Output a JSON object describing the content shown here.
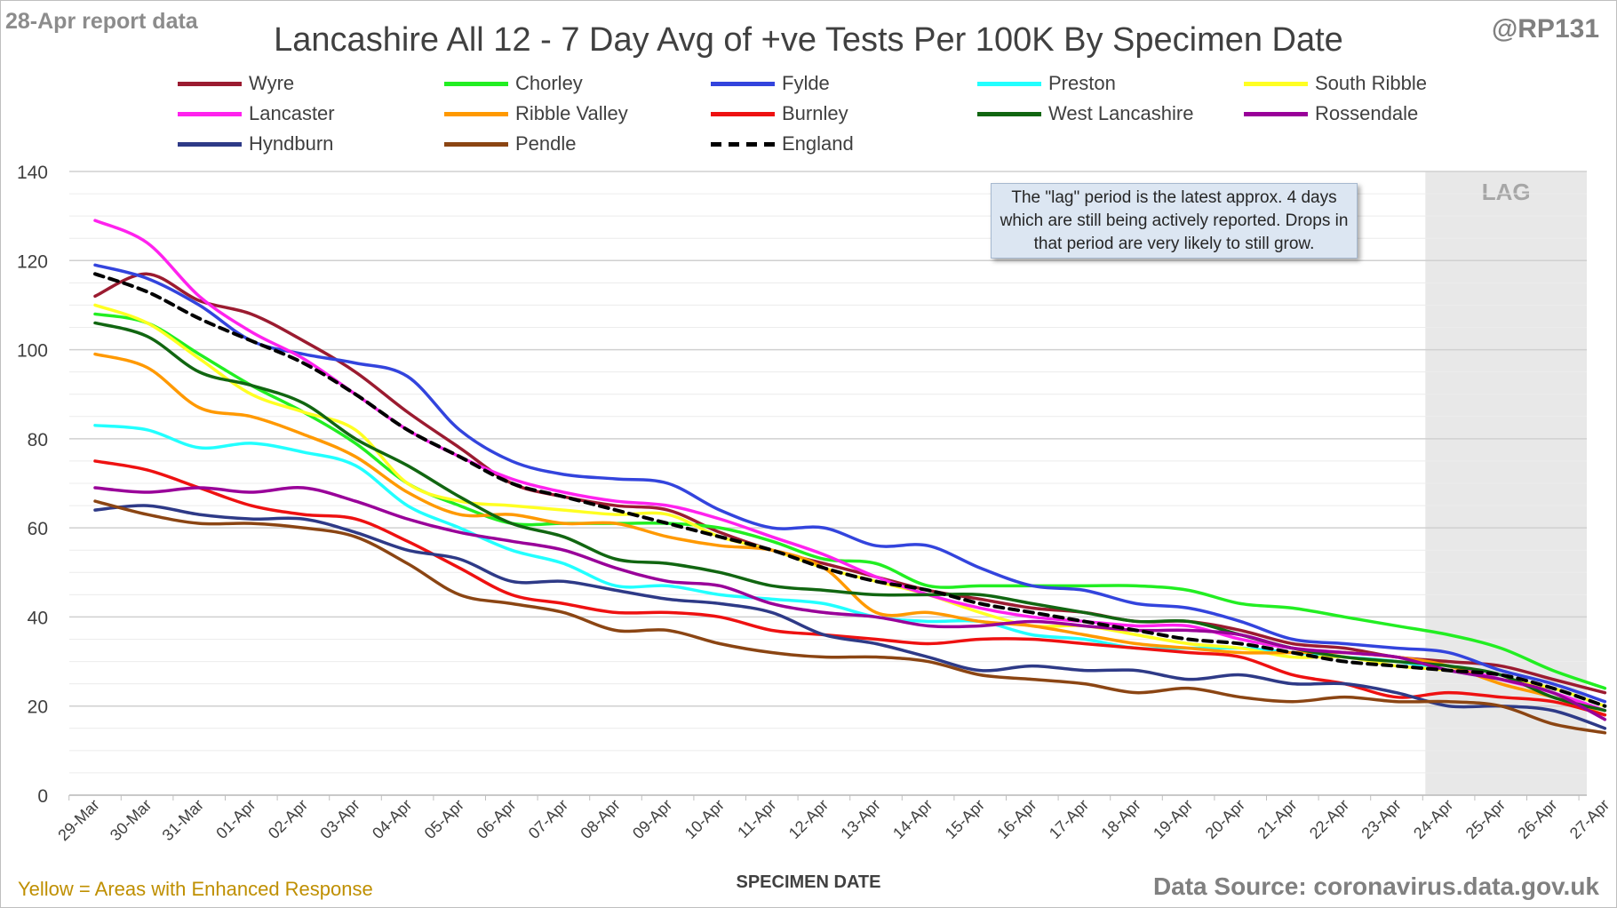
{
  "header": {
    "report_date": "28-Apr report data",
    "handle": "@RP131",
    "title": "Lancashire All 12 - 7 Day Avg of +ve Tests Per 100K By Specimen Date"
  },
  "footer": {
    "enhanced_note": "Yellow = Areas with Enhanced Response",
    "source": "Data Source: coronavirus.data.gov.uk"
  },
  "annotation": {
    "text": "The \"lag\" period is the latest approx. 4 days which are still being actively reported. Drops in that period are very likely to still grow."
  },
  "chart_data": {
    "type": "line",
    "title": "Lancashire All 12 - 7 Day Avg of +ve Tests Per 100K By Specimen Date",
    "xlabel": "SPECIMEN DATE",
    "ylabel": "",
    "ylim": [
      0,
      140
    ],
    "yticks": [
      0,
      20,
      40,
      60,
      80,
      100,
      120,
      140
    ],
    "grid": true,
    "legend_position": "top",
    "lag_label": "LAG",
    "lag_range": [
      "24-Apr",
      "27-Apr"
    ],
    "categories": [
      "29-Mar",
      "30-Mar",
      "31-Mar",
      "01-Apr",
      "02-Apr",
      "03-Apr",
      "04-Apr",
      "05-Apr",
      "06-Apr",
      "07-Apr",
      "08-Apr",
      "09-Apr",
      "10-Apr",
      "11-Apr",
      "12-Apr",
      "13-Apr",
      "14-Apr",
      "15-Apr",
      "16-Apr",
      "17-Apr",
      "18-Apr",
      "19-Apr",
      "20-Apr",
      "21-Apr",
      "22-Apr",
      "23-Apr",
      "24-Apr",
      "25-Apr",
      "26-Apr",
      "27-Apr"
    ],
    "series": [
      {
        "name": "Wyre",
        "color": "#9b1b30",
        "values": [
          112,
          117,
          111,
          108,
          102,
          95,
          86,
          78,
          70,
          67,
          65,
          64,
          59,
          55,
          52,
          49,
          46,
          44,
          42,
          41,
          39,
          39,
          37,
          34,
          33,
          31,
          30,
          29,
          26,
          23
        ]
      },
      {
        "name": "Chorley",
        "color": "#22ee22",
        "values": [
          108,
          106,
          99,
          92,
          86,
          79,
          70,
          65,
          61,
          61,
          61,
          61,
          60,
          57,
          53,
          52,
          47,
          47,
          47,
          47,
          47,
          46,
          43,
          42,
          40,
          38,
          36,
          33,
          28,
          24
        ]
      },
      {
        "name": "Fylde",
        "color": "#3344dd",
        "values": [
          119,
          116,
          110,
          102,
          99,
          97,
          94,
          82,
          75,
          72,
          71,
          70,
          64,
          60,
          60,
          56,
          56,
          51,
          47,
          46,
          43,
          42,
          39,
          35,
          34,
          33,
          32,
          28,
          25,
          21
        ]
      },
      {
        "name": "Preston",
        "color": "#22ffff",
        "values": [
          83,
          82,
          78,
          79,
          77,
          74,
          65,
          60,
          55,
          52,
          47,
          47,
          45,
          44,
          43,
          40,
          39,
          39,
          36,
          35,
          33,
          33,
          33,
          32,
          31,
          30,
          28,
          26,
          24,
          20
        ]
      },
      {
        "name": "South Ribble",
        "color": "#ffff22",
        "values": [
          110,
          106,
          98,
          90,
          86,
          82,
          70,
          66,
          65,
          64,
          63,
          63,
          58,
          55,
          51,
          48,
          45,
          41,
          38,
          38,
          36,
          34,
          33,
          31,
          31,
          29,
          28,
          26,
          24,
          20
        ]
      },
      {
        "name": "Lancaster",
        "color": "#ff22ee",
        "values": [
          129,
          124,
          112,
          104,
          98,
          90,
          82,
          76,
          71,
          68,
          66,
          65,
          62,
          58,
          54,
          49,
          45,
          42,
          40,
          39,
          38,
          38,
          35,
          33,
          32,
          31,
          29,
          26,
          23,
          19
        ]
      },
      {
        "name": "Ribble Valley",
        "color": "#ff9900",
        "values": [
          99,
          96,
          87,
          85,
          81,
          76,
          68,
          63,
          63,
          61,
          61,
          58,
          56,
          55,
          51,
          41,
          41,
          39,
          38,
          36,
          34,
          33,
          32,
          32,
          32,
          31,
          29,
          25,
          22,
          18
        ]
      },
      {
        "name": "Burnley",
        "color": "#ee1111",
        "values": [
          75,
          73,
          69,
          65,
          63,
          62,
          57,
          51,
          45,
          43,
          41,
          41,
          40,
          37,
          36,
          35,
          34,
          35,
          35,
          34,
          33,
          32,
          31,
          27,
          25,
          22,
          23,
          22,
          21,
          18
        ]
      },
      {
        "name": "West Lancashire",
        "color": "#116611",
        "values": [
          106,
          103,
          95,
          92,
          88,
          80,
          74,
          67,
          61,
          58,
          53,
          52,
          50,
          47,
          46,
          45,
          45,
          45,
          43,
          41,
          39,
          39,
          36,
          33,
          31,
          30,
          29,
          27,
          22,
          19
        ]
      },
      {
        "name": "Rossendale",
        "color": "#990099",
        "values": [
          69,
          68,
          69,
          68,
          69,
          66,
          62,
          59,
          57,
          55,
          51,
          48,
          47,
          43,
          41,
          40,
          38,
          38,
          39,
          38,
          37,
          37,
          36,
          33,
          32,
          31,
          28,
          26,
          23,
          17
        ]
      },
      {
        "name": "Hyndburn",
        "color": "#2e3a87",
        "values": [
          64,
          65,
          63,
          62,
          62,
          59,
          55,
          53,
          48,
          48,
          46,
          44,
          43,
          41,
          36,
          34,
          31,
          28,
          29,
          28,
          28,
          26,
          27,
          25,
          25,
          23,
          20,
          20,
          19,
          15
        ]
      },
      {
        "name": "Pendle",
        "color": "#8b4513",
        "values": [
          66,
          63,
          61,
          61,
          60,
          58,
          52,
          45,
          43,
          41,
          37,
          37,
          34,
          32,
          31,
          31,
          30,
          27,
          26,
          25,
          23,
          24,
          22,
          21,
          22,
          21,
          21,
          20,
          16,
          14
        ]
      },
      {
        "name": "England",
        "color": "#000000",
        "dashed": true,
        "values": [
          117,
          113,
          107,
          102,
          97,
          90,
          82,
          76,
          70,
          67,
          64,
          61,
          58,
          55,
          51,
          48,
          46,
          43,
          41,
          39,
          37,
          35,
          34,
          32,
          30,
          29,
          28,
          27,
          24,
          20
        ]
      }
    ]
  }
}
